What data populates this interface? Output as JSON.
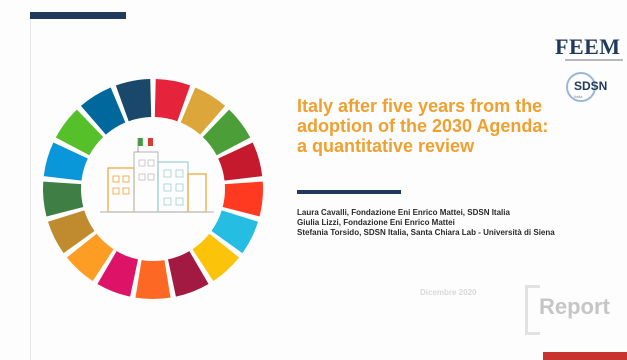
{
  "slide": {
    "title": "Italy after five years from the adoption of the 2030 Agenda: a quantitative review",
    "authors": [
      "Laura Cavalli, Fondazione Eni Enrico Mattei, SDSN Italia",
      "Giulia Lizzi, Fondazione Eni Enrico Mattei",
      "Stefania Torsido, SDSN Italia, Santa Chiara Lab - Università di Siena"
    ],
    "date": "Dicembre 2020",
    "report_label": "Report"
  },
  "logos": {
    "feem": "FEEM",
    "sdsn": "SDSN",
    "sdsn_sub": "Italia"
  },
  "colors": {
    "title": "#f0a030",
    "navy": "#1f3a5c",
    "accent_red": "#c8322f",
    "sdg": [
      "#e5243b",
      "#dda63a",
      "#4c9f38",
      "#c5192d",
      "#ff3a21",
      "#26bde2",
      "#fcc30b",
      "#a21942",
      "#fd6925",
      "#dd1367",
      "#fd9d24",
      "#bf8b2e",
      "#3f7e44",
      "#0a97d9",
      "#56c02b",
      "#00689d",
      "#19486a"
    ]
  }
}
